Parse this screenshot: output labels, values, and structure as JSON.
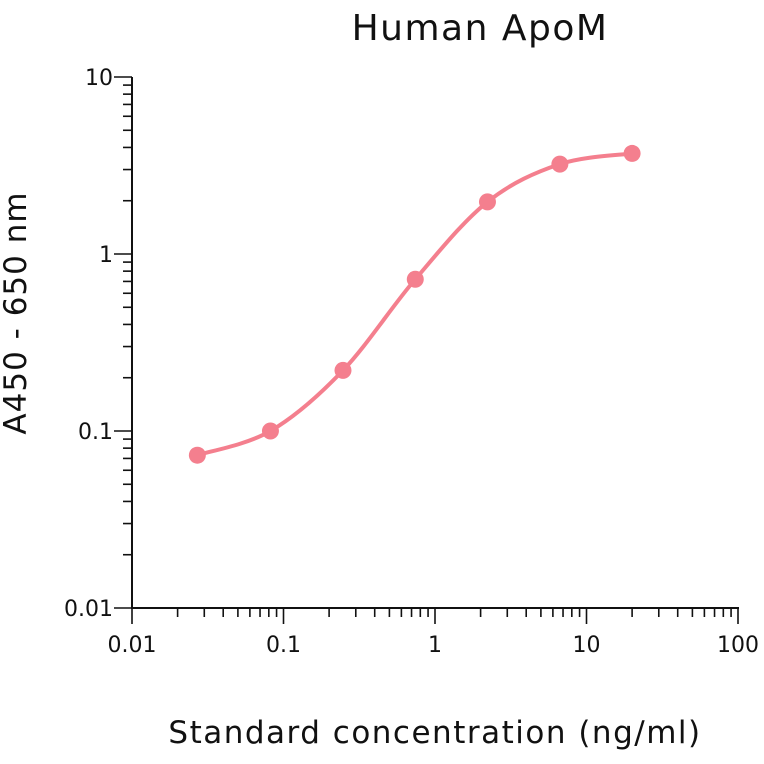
{
  "chart_data": {
    "type": "line",
    "title": "Human ApoM",
    "xlabel": "Standard concentration (ng/ml)",
    "ylabel": "A450 - 650 nm",
    "xscale": "log",
    "yscale": "log",
    "xlim": [
      0.01,
      100
    ],
    "ylim": [
      0.01,
      10
    ],
    "xticks": [
      "0.01",
      "0.1",
      "1",
      "10",
      "100"
    ],
    "yticks": [
      "0.01",
      "0.1",
      "1",
      "10"
    ],
    "grid": false,
    "series": [
      {
        "color": "#f47f8e",
        "x": [
          0.027,
          0.082,
          0.247,
          0.741,
          2.22,
          6.67,
          20
        ],
        "y": [
          0.073,
          0.1,
          0.22,
          0.72,
          1.97,
          3.22,
          3.7
        ]
      }
    ]
  }
}
